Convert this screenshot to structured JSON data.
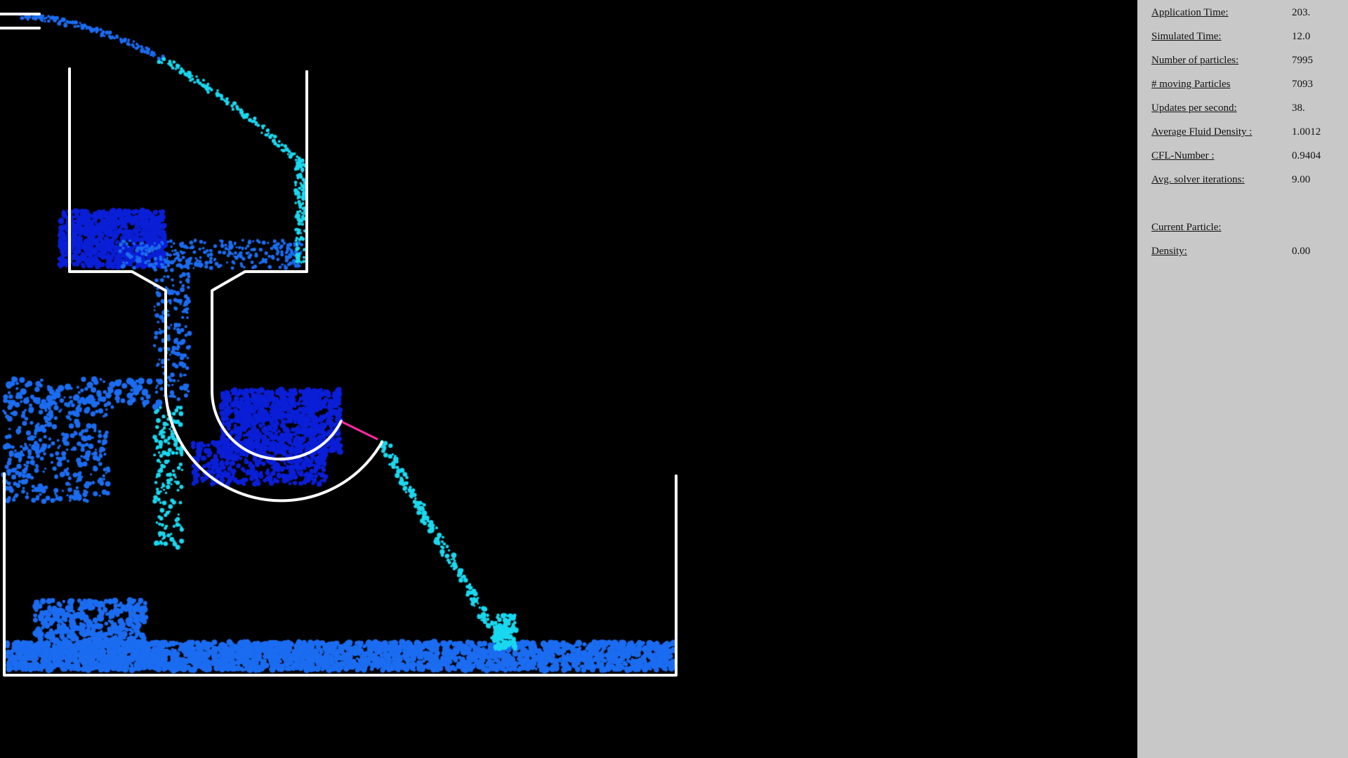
{
  "colors": {
    "background": "#000000",
    "walls": "#ffffff",
    "panel": "#c8c8c8",
    "particle_deep": "#0a1fd6",
    "particle_mid": "#1b6cf0",
    "particle_fast": "#19d8f0",
    "highlight": "#ff2aa0"
  },
  "stats": [
    {
      "label": "Application Time:",
      "value": "203."
    },
    {
      "label": "Simulated Time:",
      "value": "12.0"
    },
    {
      "label": "Number of particles:",
      "value": "7995"
    },
    {
      "label": "# moving Particles",
      "value": "7093"
    },
    {
      "label": "Updates per second:",
      "value": "38."
    },
    {
      "label": "Average Fluid Density :",
      "value": "1.0012"
    },
    {
      "label": "CFL-Number :",
      "value": "0.9404"
    },
    {
      "label": "Avg. solver iterations:",
      "value": "9.00"
    }
  ],
  "current_particle": {
    "title": "Current Particle:",
    "density_label": "Density:",
    "density_value": "0.00"
  }
}
